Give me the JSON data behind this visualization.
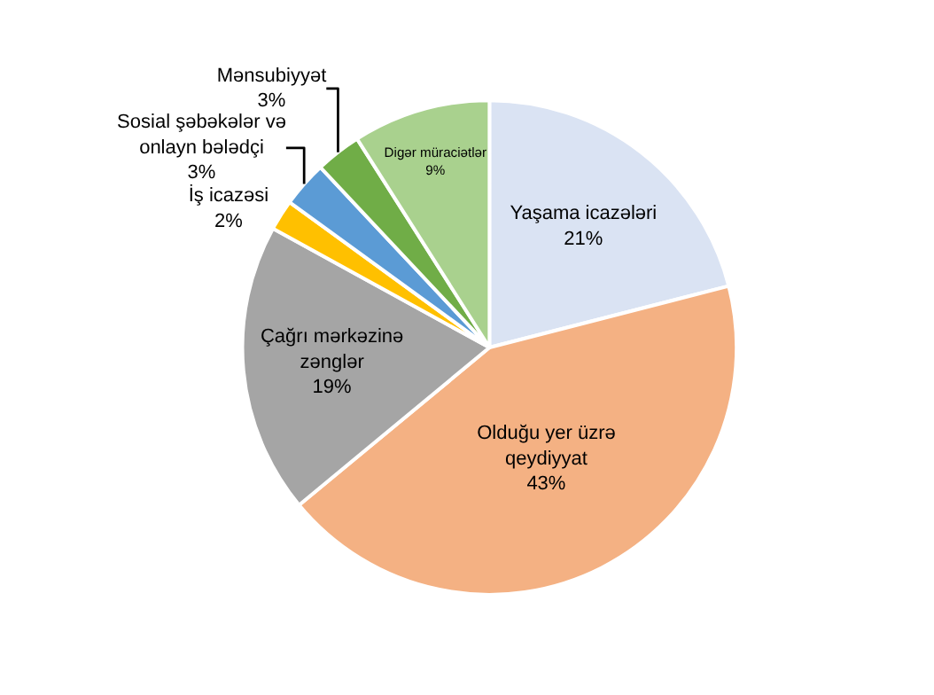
{
  "chart_data": {
    "type": "pie",
    "categories": [
      "Yaşama icazələri",
      "Olduğu yer üzrə qeydiyyat",
      "Çağrı mərkəzinə zənglər",
      "İş icazəsi",
      "Sosial şəbəkələr və onlayn bələdçi",
      "Mənsubiyyət",
      "Digər müraciətlər"
    ],
    "values": [
      21,
      43,
      19,
      2,
      3,
      3,
      9
    ],
    "value_labels": [
      "21%",
      "43%",
      "19%",
      "2%",
      "3%",
      "3%",
      "9%"
    ],
    "colors": [
      "#dae3f3",
      "#f4b183",
      "#a5a5a5",
      "#ffc000",
      "#5b9bd5",
      "#70ad47",
      "#a9d18e"
    ],
    "legend": false
  }
}
